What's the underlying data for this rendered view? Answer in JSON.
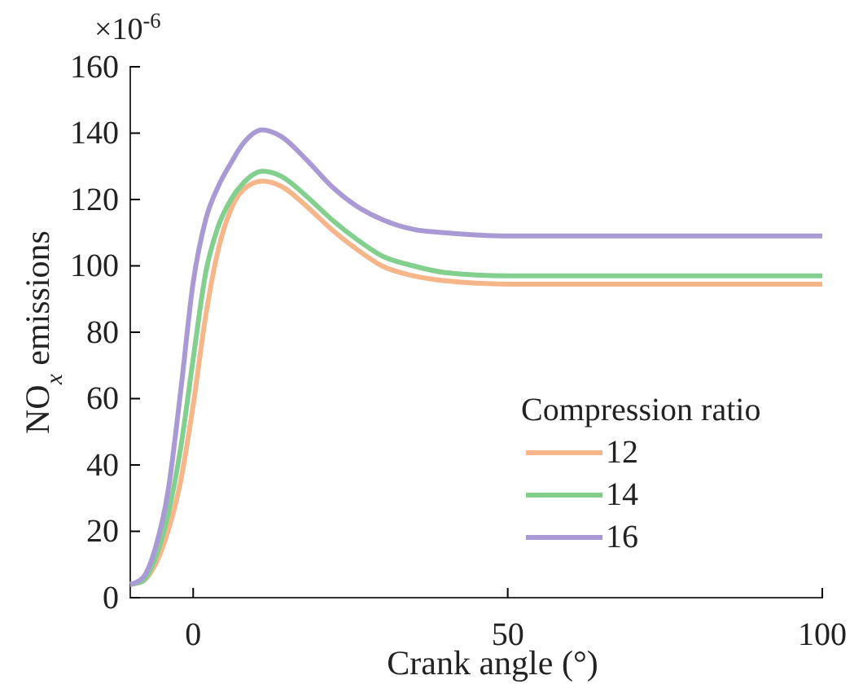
{
  "chart_data": {
    "type": "line",
    "xlabel": "Crank angle (°)",
    "ylabel": "NO$_{x}$ emissions",
    "legend_title": "Compression ratio",
    "annotations": [
      "×10$^{-6}$"
    ],
    "xlim": [
      -10,
      100
    ],
    "xticks": [
      0,
      50,
      100
    ],
    "ylim": [
      0,
      160
    ],
    "yticks": [
      0,
      20,
      40,
      60,
      80,
      100,
      120,
      140,
      160
    ],
    "grid": false,
    "legend": "bottom right",
    "marker": "none",
    "line_style": "solid",
    "series": [
      {
        "name": "12",
        "color": "#f7b58a",
        "x": [
          -10,
          -8,
          -6,
          -4,
          -2,
          0,
          2,
          4,
          6,
          8,
          11,
          14,
          18,
          22,
          26,
          30,
          35,
          40,
          50,
          60,
          100
        ],
        "values": [
          4,
          5,
          10,
          20,
          35,
          58,
          85,
          105,
          117,
          123,
          125.5,
          124,
          118,
          111,
          105,
          100,
          97,
          95.5,
          94.5,
          94.5,
          94.5
        ]
      },
      {
        "name": "14",
        "color": "#82cf8e",
        "x": [
          -10,
          -8,
          -6,
          -4,
          -2,
          0,
          2,
          4,
          6,
          8,
          11,
          14,
          18,
          22,
          26,
          30,
          35,
          40,
          50,
          60,
          100
        ],
        "values": [
          4,
          5,
          12,
          25,
          45,
          72,
          98,
          112,
          120,
          125,
          128.5,
          127,
          121,
          114,
          108,
          103,
          100,
          98,
          97,
          97,
          97
        ]
      },
      {
        "name": "16",
        "color": "#a99ad6",
        "x": [
          -10,
          -8,
          -6,
          -4,
          -2,
          0,
          2,
          4,
          6,
          8,
          11,
          14,
          18,
          22,
          26,
          30,
          35,
          40,
          50,
          60,
          100
        ],
        "values": [
          4,
          6,
          15,
          32,
          62,
          95,
          114,
          124,
          131,
          137,
          141,
          139,
          132,
          124,
          118,
          114,
          111,
          110,
          109,
          109,
          109
        ]
      }
    ]
  }
}
